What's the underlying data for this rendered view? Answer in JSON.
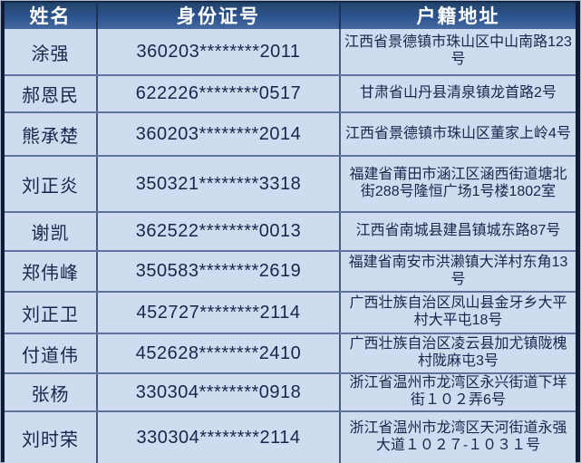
{
  "table": {
    "columns": [
      {
        "key": "name",
        "label": "姓名"
      },
      {
        "key": "id_number",
        "label": "身份证号"
      },
      {
        "key": "address",
        "label": "户籍地址"
      }
    ],
    "rows": [
      {
        "name": "涂强",
        "id_number": "360203********2011",
        "address": "江西省景德镇市珠山区中山南路123号"
      },
      {
        "name": "郝恩民",
        "id_number": "622226********0517",
        "address": "甘肃省山丹县清泉镇龙首路2号"
      },
      {
        "name": "熊承楚",
        "id_number": "360203********2014",
        "address": "江西省景德镇市珠山区董家上岭4号"
      },
      {
        "name": "刘正炎",
        "id_number": "350321********3318",
        "address": "福建省莆田市涵江区涵西街道塘北街288号隆恒广场1号楼1802室"
      },
      {
        "name": "谢凯",
        "id_number": "362522********0013",
        "address": "江西省南城县建昌镇城东路87号"
      },
      {
        "name": "郑伟峰",
        "id_number": "350583********2619",
        "address": "福建省南安市洪濑镇大洋村东角13号"
      },
      {
        "name": "刘正卫",
        "id_number": "452727********2114",
        "address": "广西壮族自治区凤山县金牙乡大平村大平屯18号"
      },
      {
        "name": "付道伟",
        "id_number": "452628********2410",
        "address": "广西壮族自治区凌云县加尤镇陇槐村陇麻屯3号"
      },
      {
        "name": "张杨",
        "id_number": "330304********0918",
        "address": "浙江省温州市龙湾区永兴街道下垟街１０２弄6号"
      },
      {
        "name": "刘时荣",
        "id_number": "330304********2114",
        "address": "浙江省温州市龙湾区天河街道永强大道１０２７-１０３１号"
      }
    ],
    "colors": {
      "frame": "#0f1c38",
      "header_bg_top": "#16305a",
      "header_bg_bottom": "#44699f",
      "header_text": "#ffffff",
      "cell_bg": "#cfdcef",
      "cell_text": "#17264c",
      "row_separator": "#5f739c"
    }
  }
}
